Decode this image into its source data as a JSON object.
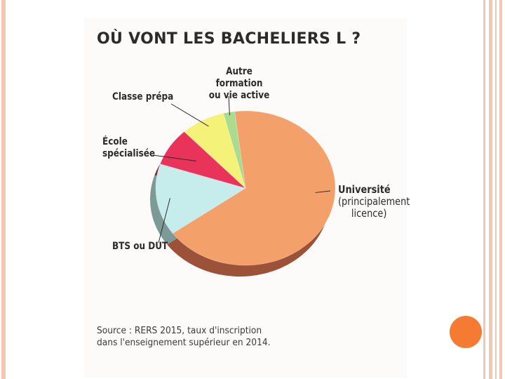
{
  "chart_data": {
    "type": "pie",
    "title": "OÙ VONT LES BACHELIERS L ?",
    "slices": [
      {
        "label": "Université (principalement licence)",
        "value": 67,
        "color": "#f3a06a",
        "side_color": "#9b5238"
      },
      {
        "label": "BTS ou DUT",
        "value": 15,
        "color": "#c6ecec",
        "side_color": "#7e9a96"
      },
      {
        "label": "École spécialisée",
        "value": 8,
        "color": "#e9335a",
        "side_color": "#8e1f33"
      },
      {
        "label": "Classe prépa",
        "value": 8,
        "color": "#f5f27a",
        "side_color": "#b5b244"
      },
      {
        "label": "Autre formation ou vie active",
        "value": 2,
        "color": "#a9dc8e",
        "side_color": "#6f9a56"
      }
    ],
    "labels": {
      "universite": "Université",
      "universite_sub1": "(principalement",
      "universite_sub2": "licence)",
      "bts": "BTS ou DUT",
      "ecole1": "École",
      "ecole2": "spécialisée",
      "prepa": "Classe prépa",
      "autre1": "Autre formation",
      "autre2": "ou vie active"
    },
    "source_line1": "Source : RERS 2015, taux d'inscription",
    "source_line2": "dans l'enseignement supérieur en 2014."
  }
}
